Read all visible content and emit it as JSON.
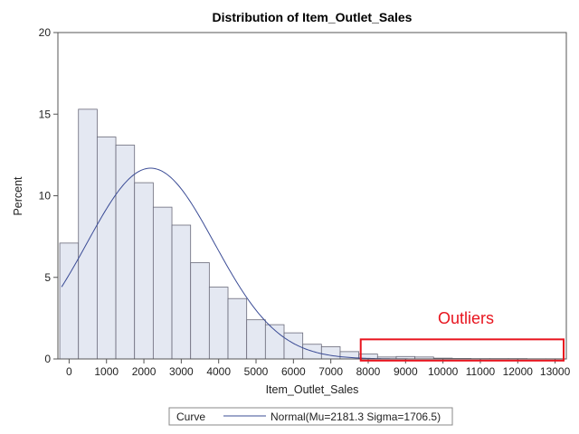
{
  "chart_data": {
    "type": "bar",
    "title": "Distribution of Item_Outlet_Sales",
    "xlabel": "Item_Outlet_Sales",
    "ylabel": "Percent",
    "xlim": [
      -300,
      13300
    ],
    "ylim": [
      0,
      20
    ],
    "xticks": [
      0,
      1000,
      2000,
      3000,
      4000,
      5000,
      6000,
      7000,
      8000,
      9000,
      10000,
      11000,
      12000,
      13000
    ],
    "yticks": [
      0,
      5,
      10,
      15,
      20
    ],
    "bin_width": 500,
    "bins": [
      {
        "x0": -250,
        "x1": 250,
        "value": 7.1
      },
      {
        "x0": 250,
        "x1": 750,
        "value": 15.3
      },
      {
        "x0": 750,
        "x1": 1250,
        "value": 13.6
      },
      {
        "x0": 1250,
        "x1": 1750,
        "value": 13.1
      },
      {
        "x0": 1750,
        "x1": 2250,
        "value": 10.8
      },
      {
        "x0": 2250,
        "x1": 2750,
        "value": 9.3
      },
      {
        "x0": 2750,
        "x1": 3250,
        "value": 8.2
      },
      {
        "x0": 3250,
        "x1": 3750,
        "value": 5.9
      },
      {
        "x0": 3750,
        "x1": 4250,
        "value": 4.4
      },
      {
        "x0": 4250,
        "x1": 4750,
        "value": 3.7
      },
      {
        "x0": 4750,
        "x1": 5250,
        "value": 2.4
      },
      {
        "x0": 5250,
        "x1": 5750,
        "value": 2.1
      },
      {
        "x0": 5750,
        "x1": 6250,
        "value": 1.6
      },
      {
        "x0": 6250,
        "x1": 6750,
        "value": 0.9
      },
      {
        "x0": 6750,
        "x1": 7250,
        "value": 0.75
      },
      {
        "x0": 7250,
        "x1": 7750,
        "value": 0.45
      },
      {
        "x0": 7750,
        "x1": 8250,
        "value": 0.3
      },
      {
        "x0": 8250,
        "x1": 8750,
        "value": 0.12
      },
      {
        "x0": 8750,
        "x1": 9250,
        "value": 0.15
      },
      {
        "x0": 9250,
        "x1": 9750,
        "value": 0.12
      },
      {
        "x0": 9750,
        "x1": 10250,
        "value": 0.05
      },
      {
        "x0": 10250,
        "x1": 10750,
        "value": 0.03
      },
      {
        "x0": 10750,
        "x1": 11250,
        "value": 0.02
      },
      {
        "x0": 11250,
        "x1": 11750,
        "value": 0.02
      },
      {
        "x0": 11750,
        "x1": 12250,
        "value": 0.02
      },
      {
        "x0": 12250,
        "x1": 12750,
        "value": 0.01
      },
      {
        "x0": 12750,
        "x1": 13250,
        "value": 0.01
      }
    ],
    "curve": {
      "type": "normal",
      "mu": 2181.3,
      "sigma": 1706.5
    },
    "legend": {
      "title": "Curve",
      "entries": [
        "Normal(Mu=2181.3 Sigma=1706.5)"
      ]
    },
    "annotation": {
      "text": "Outliers",
      "x_range": [
        7800,
        13300
      ],
      "y_range": [
        -0.1,
        1.2
      ]
    },
    "grid": false,
    "colors": {
      "bar_fill": "#e4e8f2",
      "bar_stroke": "#6a6a7a",
      "curve": "#3b4c96",
      "annotation": "#e8141e",
      "axis": "#555555"
    }
  }
}
